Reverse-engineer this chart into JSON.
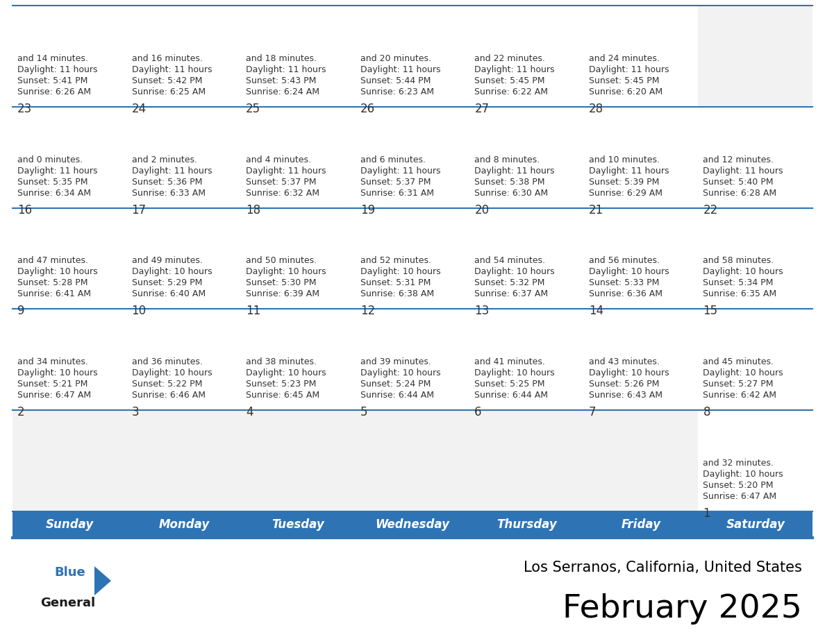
{
  "title": "February 2025",
  "subtitle": "Los Serranos, California, United States",
  "header_bg": "#2E74B5",
  "header_text_color": "#FFFFFF",
  "cell_bg_light": "#F2F2F2",
  "cell_bg_white": "#FFFFFF",
  "separator_color": "#2E74B5",
  "text_color": "#333333",
  "days_of_week": [
    "Sunday",
    "Monday",
    "Tuesday",
    "Wednesday",
    "Thursday",
    "Friday",
    "Saturday"
  ],
  "weeks": [
    [
      {
        "day": "",
        "sunrise": "",
        "sunset": "",
        "daylight": ""
      },
      {
        "day": "",
        "sunrise": "",
        "sunset": "",
        "daylight": ""
      },
      {
        "day": "",
        "sunrise": "",
        "sunset": "",
        "daylight": ""
      },
      {
        "day": "",
        "sunrise": "",
        "sunset": "",
        "daylight": ""
      },
      {
        "day": "",
        "sunrise": "",
        "sunset": "",
        "daylight": ""
      },
      {
        "day": "",
        "sunrise": "",
        "sunset": "",
        "daylight": ""
      },
      {
        "day": "1",
        "sunrise": "6:47 AM",
        "sunset": "5:20 PM",
        "daylight": "10 hours\nand 32 minutes."
      }
    ],
    [
      {
        "day": "2",
        "sunrise": "6:47 AM",
        "sunset": "5:21 PM",
        "daylight": "10 hours\nand 34 minutes."
      },
      {
        "day": "3",
        "sunrise": "6:46 AM",
        "sunset": "5:22 PM",
        "daylight": "10 hours\nand 36 minutes."
      },
      {
        "day": "4",
        "sunrise": "6:45 AM",
        "sunset": "5:23 PM",
        "daylight": "10 hours\nand 38 minutes."
      },
      {
        "day": "5",
        "sunrise": "6:44 AM",
        "sunset": "5:24 PM",
        "daylight": "10 hours\nand 39 minutes."
      },
      {
        "day": "6",
        "sunrise": "6:44 AM",
        "sunset": "5:25 PM",
        "daylight": "10 hours\nand 41 minutes."
      },
      {
        "day": "7",
        "sunrise": "6:43 AM",
        "sunset": "5:26 PM",
        "daylight": "10 hours\nand 43 minutes."
      },
      {
        "day": "8",
        "sunrise": "6:42 AM",
        "sunset": "5:27 PM",
        "daylight": "10 hours\nand 45 minutes."
      }
    ],
    [
      {
        "day": "9",
        "sunrise": "6:41 AM",
        "sunset": "5:28 PM",
        "daylight": "10 hours\nand 47 minutes."
      },
      {
        "day": "10",
        "sunrise": "6:40 AM",
        "sunset": "5:29 PM",
        "daylight": "10 hours\nand 49 minutes."
      },
      {
        "day": "11",
        "sunrise": "6:39 AM",
        "sunset": "5:30 PM",
        "daylight": "10 hours\nand 50 minutes."
      },
      {
        "day": "12",
        "sunrise": "6:38 AM",
        "sunset": "5:31 PM",
        "daylight": "10 hours\nand 52 minutes."
      },
      {
        "day": "13",
        "sunrise": "6:37 AM",
        "sunset": "5:32 PM",
        "daylight": "10 hours\nand 54 minutes."
      },
      {
        "day": "14",
        "sunrise": "6:36 AM",
        "sunset": "5:33 PM",
        "daylight": "10 hours\nand 56 minutes."
      },
      {
        "day": "15",
        "sunrise": "6:35 AM",
        "sunset": "5:34 PM",
        "daylight": "10 hours\nand 58 minutes."
      }
    ],
    [
      {
        "day": "16",
        "sunrise": "6:34 AM",
        "sunset": "5:35 PM",
        "daylight": "11 hours\nand 0 minutes."
      },
      {
        "day": "17",
        "sunrise": "6:33 AM",
        "sunset": "5:36 PM",
        "daylight": "11 hours\nand 2 minutes."
      },
      {
        "day": "18",
        "sunrise": "6:32 AM",
        "sunset": "5:37 PM",
        "daylight": "11 hours\nand 4 minutes."
      },
      {
        "day": "19",
        "sunrise": "6:31 AM",
        "sunset": "5:37 PM",
        "daylight": "11 hours\nand 6 minutes."
      },
      {
        "day": "20",
        "sunrise": "6:30 AM",
        "sunset": "5:38 PM",
        "daylight": "11 hours\nand 8 minutes."
      },
      {
        "day": "21",
        "sunrise": "6:29 AM",
        "sunset": "5:39 PM",
        "daylight": "11 hours\nand 10 minutes."
      },
      {
        "day": "22",
        "sunrise": "6:28 AM",
        "sunset": "5:40 PM",
        "daylight": "11 hours\nand 12 minutes."
      }
    ],
    [
      {
        "day": "23",
        "sunrise": "6:26 AM",
        "sunset": "5:41 PM",
        "daylight": "11 hours\nand 14 minutes."
      },
      {
        "day": "24",
        "sunrise": "6:25 AM",
        "sunset": "5:42 PM",
        "daylight": "11 hours\nand 16 minutes."
      },
      {
        "day": "25",
        "sunrise": "6:24 AM",
        "sunset": "5:43 PM",
        "daylight": "11 hours\nand 18 minutes."
      },
      {
        "day": "26",
        "sunrise": "6:23 AM",
        "sunset": "5:44 PM",
        "daylight": "11 hours\nand 20 minutes."
      },
      {
        "day": "27",
        "sunrise": "6:22 AM",
        "sunset": "5:45 PM",
        "daylight": "11 hours\nand 22 minutes."
      },
      {
        "day": "28",
        "sunrise": "6:20 AM",
        "sunset": "5:45 PM",
        "daylight": "11 hours\nand 24 minutes."
      },
      {
        "day": "",
        "sunrise": "",
        "sunset": "",
        "daylight": ""
      }
    ]
  ],
  "logo_triangle_color": "#2E74B5",
  "title_fontsize": 34,
  "subtitle_fontsize": 15,
  "day_header_fontsize": 12,
  "day_num_fontsize": 12,
  "cell_text_fontsize": 9
}
